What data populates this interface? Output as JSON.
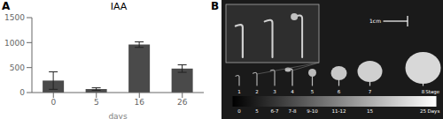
{
  "chart_data": {
    "type": "bar",
    "title": "IAA",
    "xlabel": "days",
    "categories": [
      "0",
      "5",
      "16",
      "26"
    ],
    "values": [
      240,
      70,
      960,
      480
    ],
    "errors": [
      175,
      25,
      55,
      75
    ],
    "color": "#4a4a4a",
    "ylim": [
      0,
      1500
    ],
    "yticks": [
      0,
      500,
      1000,
      1500
    ],
    "grid": false,
    "annotations": [
      "A",
      "B",
      "1",
      "2",
      "3",
      "4",
      "5",
      "6",
      "7",
      "8",
      "Stage",
      "0",
      "5",
      "6-7",
      "7-8",
      "9-10",
      "11-12",
      "15",
      "25",
      "Days",
      "1cm"
    ]
  }
}
